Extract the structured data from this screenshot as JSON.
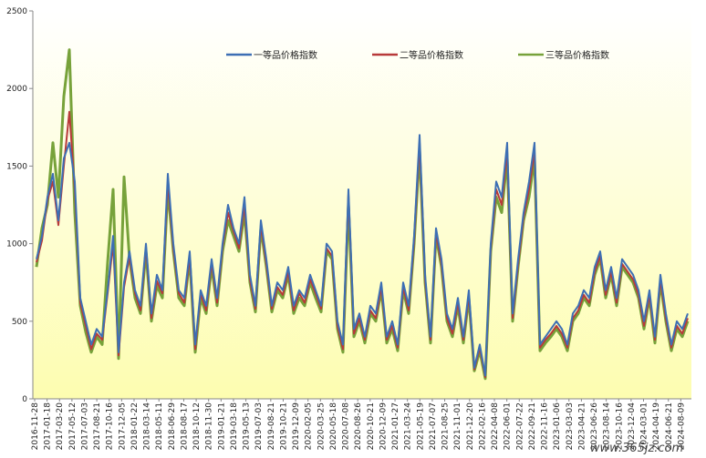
{
  "chart_data": {
    "type": "line",
    "title": "",
    "xlabel": "",
    "ylabel": "",
    "ylim": [
      0,
      2500
    ],
    "yticks": [
      0,
      500,
      1000,
      1500,
      2000,
      2500
    ],
    "grid": false,
    "legend_position": "top",
    "background": "yellow-gradient",
    "xtick_labels": [
      "2016-11-28",
      "2017-01-18",
      "2017-03-20",
      "2017-05-12",
      "2017-07-03",
      "2017-08-21",
      "2017-10-16",
      "2017-12-05",
      "2018-01-22",
      "2018-03-14",
      "2018-05-11",
      "2018-06-29",
      "2018-08-17",
      "2018-10-12",
      "2018-11-30",
      "2019-01-21",
      "2019-03-18",
      "2019-05-13",
      "2019-07-03",
      "2019-08-21",
      "2019-10-21",
      "2019-12-09",
      "2020-02-05",
      "2020-03-25",
      "2020-05-18",
      "2020-07-08",
      "2020-08-26",
      "2020-10-21",
      "2020-12-09",
      "2021-01-27",
      "2021-03-24",
      "2021-05-19",
      "2021-07-07",
      "2021-08-25",
      "2021-11-01",
      "2021-12-20",
      "2022-02-16",
      "2022-04-08",
      "2022-06-01",
      "2022-07-22",
      "2022-09-21",
      "2022-11-16",
      "2023-01-06",
      "2023-03-03",
      "2023-04-21",
      "2023-06-26",
      "2023-08-14",
      "2023-10-16",
      "2023-12-04",
      "2024-03-01",
      "2024-04-19",
      "2024-06-21",
      "2024-08-09"
    ],
    "series": [
      {
        "name": "一等品价格指数",
        "color": "#3d6fb4",
        "values": [
          900,
          1050,
          1300,
          1450,
          1150,
          1550,
          1650,
          1400,
          650,
          500,
          350,
          450,
          400,
          700,
          1050,
          300,
          750,
          950,
          700,
          600,
          1000,
          550,
          800,
          700,
          1450,
          1000,
          700,
          650,
          950,
          350,
          700,
          600,
          900,
          650,
          1000,
          1250,
          1100,
          1000,
          1300,
          800,
          600,
          1150,
          900,
          600,
          750,
          700,
          850,
          600,
          700,
          650,
          800,
          700,
          600,
          1000,
          950,
          500,
          350,
          1350,
          450,
          550,
          400,
          600,
          550,
          750,
          400,
          500,
          350,
          750,
          600,
          1050,
          1700,
          800,
          400,
          1100,
          900,
          550,
          450,
          650,
          400,
          700,
          200,
          350,
          150,
          1000,
          1400,
          1300,
          1650,
          550,
          900,
          1200,
          1400,
          1650,
          350,
          400,
          450,
          500,
          450,
          350,
          550,
          600,
          700,
          650,
          850,
          950,
          700,
          850,
          650,
          900,
          850,
          800,
          700,
          500,
          700,
          400,
          800,
          550,
          350,
          500,
          450,
          550
        ]
      },
      {
        "name": "二等品价格指数",
        "color": "#b83a3a",
        "values": [
          880,
          1020,
          1280,
          1400,
          1120,
          1500,
          1850,
          1350,
          620,
          470,
          320,
          420,
          380,
          680,
          1000,
          280,
          720,
          920,
          680,
          570,
          980,
          520,
          760,
          680,
          1400,
          970,
          680,
          620,
          920,
          320,
          680,
          570,
          880,
          620,
          980,
          1200,
          1080,
          970,
          1250,
          770,
          580,
          1120,
          870,
          580,
          720,
          670,
          820,
          570,
          680,
          620,
          770,
          680,
          580,
          970,
          920,
          470,
          320,
          1320,
          420,
          520,
          380,
          570,
          520,
          720,
          380,
          470,
          330,
          720,
          570,
          1020,
          1650,
          770,
          380,
          1070,
          870,
          520,
          420,
          620,
          380,
          670,
          190,
          330,
          140,
          970,
          1350,
          1250,
          1600,
          520,
          870,
          1170,
          1350,
          1600,
          330,
          380,
          420,
          470,
          420,
          330,
          520,
          570,
          670,
          620,
          820,
          920,
          670,
          820,
          620,
          870,
          820,
          770,
          670,
          470,
          670,
          380,
          770,
          520,
          330,
          470,
          420,
          520
        ]
      },
      {
        "name": "三等品价格指数",
        "color": "#77a23a",
        "values": [
          850,
          1100,
          1250,
          1650,
          1300,
          1950,
          2250,
          1200,
          600,
          430,
          300,
          400,
          350,
          880,
          1350,
          260,
          1430,
          900,
          650,
          550,
          950,
          500,
          730,
          650,
          1350,
          950,
          650,
          600,
          900,
          300,
          650,
          550,
          850,
          600,
          950,
          1150,
          1050,
          950,
          1200,
          750,
          560,
          1100,
          850,
          560,
          700,
          650,
          800,
          550,
          650,
          600,
          750,
          650,
          560,
          950,
          900,
          450,
          300,
          1250,
          400,
          500,
          360,
          550,
          500,
          700,
          360,
          450,
          310,
          700,
          550,
          1000,
          1600,
          750,
          360,
          1050,
          850,
          500,
          400,
          600,
          360,
          650,
          180,
          310,
          130,
          950,
          1300,
          1200,
          1550,
          500,
          850,
          1150,
          1300,
          1550,
          310,
          360,
          400,
          450,
          400,
          310,
          500,
          550,
          650,
          600,
          800,
          900,
          650,
          800,
          600,
          850,
          800,
          750,
          650,
          450,
          650,
          360,
          750,
          500,
          310,
          450,
          400,
          500
        ]
      }
    ]
  },
  "watermark": "www.365jz.com"
}
